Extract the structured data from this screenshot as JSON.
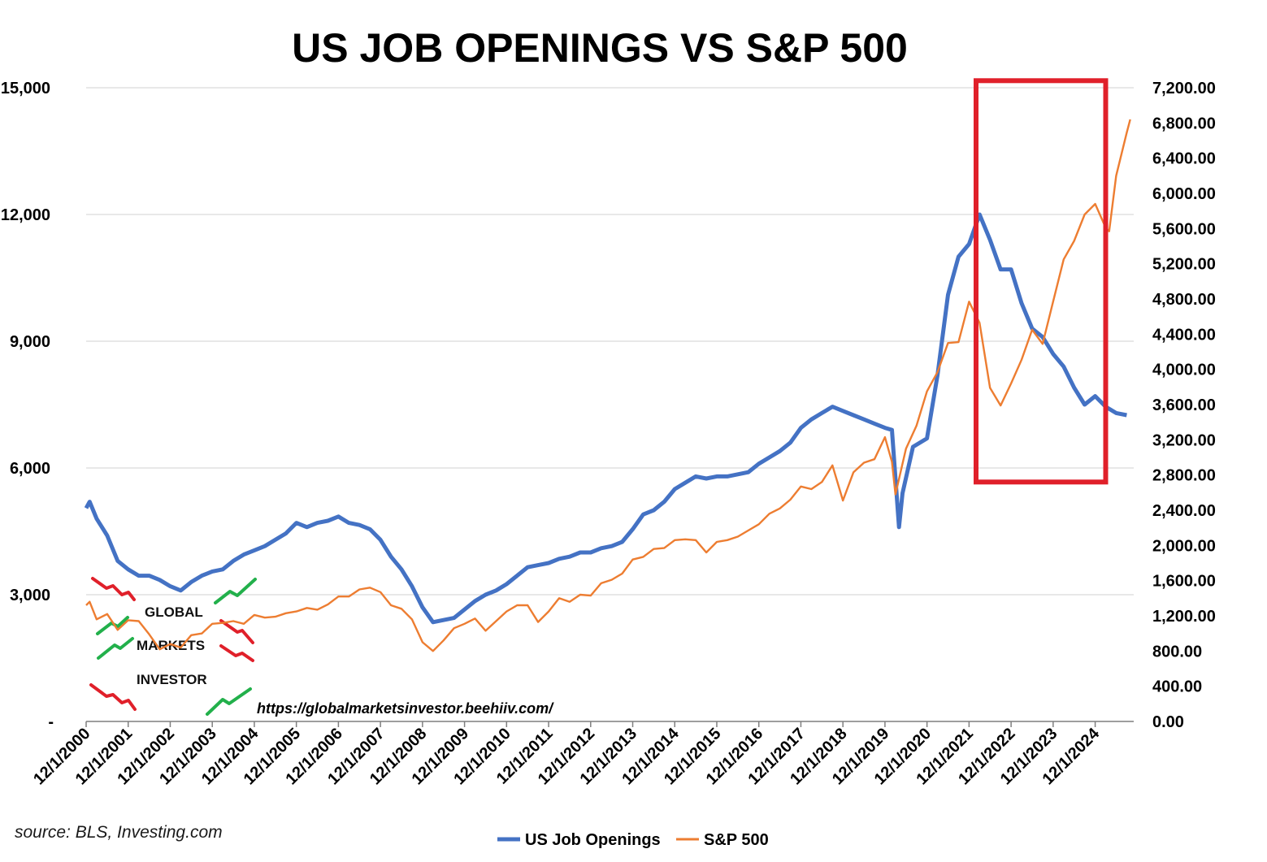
{
  "chart_data": {
    "type": "line",
    "title": "US JOB OPENINGS VS S&P 500",
    "source": "source: BLS, Investing.com",
    "watermark": [
      "GLOBAL",
      "MARKETS",
      "INVESTOR"
    ],
    "url": "https://globalmarketsinvestor.beehiiv.com/",
    "x_tick_labels": [
      "12/1/2000",
      "12/1/2001",
      "12/1/2002",
      "12/1/2003",
      "12/1/2004",
      "12/1/2005",
      "12/1/2006",
      "12/1/2007",
      "12/1/2008",
      "12/1/2009",
      "12/1/2010",
      "12/1/2011",
      "12/1/2012",
      "12/1/2013",
      "12/1/2014",
      "12/1/2015",
      "12/1/2016",
      "12/1/2017",
      "12/1/2018",
      "12/1/2019",
      "12/1/2020",
      "12/1/2021",
      "12/1/2022",
      "12/1/2023",
      "12/1/2024"
    ],
    "y_left": {
      "ylim": [
        0,
        15000
      ],
      "tick_labels": [
        "-",
        "3,000",
        "6,000",
        "9,000",
        "12,000",
        "15,000"
      ]
    },
    "y_right": {
      "ylim": [
        0,
        7200
      ],
      "tick_labels": [
        "0.00",
        "400.00",
        "800.00",
        "1,200.00",
        "1,600.00",
        "2,000.00",
        "2,400.00",
        "2,800.00",
        "3,200.00",
        "3,600.00",
        "4,000.00",
        "4,400.00",
        "4,800.00",
        "5,200.00",
        "5,600.00",
        "6,000.00",
        "6,400.00",
        "6,800.00",
        "7,200.00"
      ]
    },
    "grid": true,
    "legend_position": "bottom-center",
    "highlight_box": {
      "color": "#e0202a",
      "x_from": "2022-02",
      "x_to": "2025-03",
      "y_right_from": 2720,
      "y_right_to": 7280
    },
    "series": [
      {
        "name": "US Job Openings",
        "axis": "left",
        "color": "#4472c4",
        "points": [
          [
            "2000-12",
            5050
          ],
          [
            "2001-01",
            5200
          ],
          [
            "2001-03",
            4800
          ],
          [
            "2001-06",
            4400
          ],
          [
            "2001-09",
            3800
          ],
          [
            "2001-12",
            3600
          ],
          [
            "2002-03",
            3450
          ],
          [
            "2002-06",
            3450
          ],
          [
            "2002-09",
            3350
          ],
          [
            "2002-12",
            3200
          ],
          [
            "2003-03",
            3100
          ],
          [
            "2003-06",
            3300
          ],
          [
            "2003-09",
            3450
          ],
          [
            "2003-12",
            3550
          ],
          [
            "2004-03",
            3600
          ],
          [
            "2004-06",
            3800
          ],
          [
            "2004-09",
            3950
          ],
          [
            "2004-12",
            4050
          ],
          [
            "2005-03",
            4150
          ],
          [
            "2005-06",
            4300
          ],
          [
            "2005-09",
            4450
          ],
          [
            "2005-12",
            4700
          ],
          [
            "2006-03",
            4600
          ],
          [
            "2006-06",
            4700
          ],
          [
            "2006-09",
            4750
          ],
          [
            "2006-12",
            4850
          ],
          [
            "2007-03",
            4700
          ],
          [
            "2007-06",
            4650
          ],
          [
            "2007-09",
            4550
          ],
          [
            "2007-12",
            4300
          ],
          [
            "2008-03",
            3900
          ],
          [
            "2008-06",
            3600
          ],
          [
            "2008-09",
            3200
          ],
          [
            "2008-12",
            2700
          ],
          [
            "2009-03",
            2350
          ],
          [
            "2009-06",
            2400
          ],
          [
            "2009-09",
            2450
          ],
          [
            "2009-12",
            2650
          ],
          [
            "2010-03",
            2850
          ],
          [
            "2010-06",
            3000
          ],
          [
            "2010-09",
            3100
          ],
          [
            "2010-12",
            3250
          ],
          [
            "2011-03",
            3450
          ],
          [
            "2011-06",
            3650
          ],
          [
            "2011-09",
            3700
          ],
          [
            "2011-12",
            3750
          ],
          [
            "2012-03",
            3850
          ],
          [
            "2012-06",
            3900
          ],
          [
            "2012-09",
            4000
          ],
          [
            "2012-12",
            4000
          ],
          [
            "2013-03",
            4100
          ],
          [
            "2013-06",
            4150
          ],
          [
            "2013-09",
            4250
          ],
          [
            "2013-12",
            4550
          ],
          [
            "2014-03",
            4900
          ],
          [
            "2014-06",
            5000
          ],
          [
            "2014-09",
            5200
          ],
          [
            "2014-12",
            5500
          ],
          [
            "2015-03",
            5650
          ],
          [
            "2015-06",
            5800
          ],
          [
            "2015-09",
            5750
          ],
          [
            "2015-12",
            5800
          ],
          [
            "2016-03",
            5800
          ],
          [
            "2016-06",
            5850
          ],
          [
            "2016-09",
            5900
          ],
          [
            "2016-12",
            6100
          ],
          [
            "2017-03",
            6250
          ],
          [
            "2017-06",
            6400
          ],
          [
            "2017-09",
            6600
          ],
          [
            "2017-12",
            6950
          ],
          [
            "2018-03",
            7150
          ],
          [
            "2018-06",
            7300
          ],
          [
            "2018-09",
            7450
          ],
          [
            "2018-12",
            7350
          ],
          [
            "2019-03",
            7250
          ],
          [
            "2019-06",
            7150
          ],
          [
            "2019-09",
            7050
          ],
          [
            "2019-12",
            6950
          ],
          [
            "2020-02",
            6900
          ],
          [
            "2020-04",
            4600
          ],
          [
            "2020-05",
            5400
          ],
          [
            "2020-08",
            6500
          ],
          [
            "2020-12",
            6700
          ],
          [
            "2021-03",
            8200
          ],
          [
            "2021-06",
            10100
          ],
          [
            "2021-09",
            11000
          ],
          [
            "2021-12",
            11300
          ],
          [
            "2022-03",
            12000
          ],
          [
            "2022-06",
            11400
          ],
          [
            "2022-09",
            10700
          ],
          [
            "2022-12",
            10700
          ],
          [
            "2023-03",
            9900
          ],
          [
            "2023-06",
            9300
          ],
          [
            "2023-09",
            9100
          ],
          [
            "2023-12",
            8700
          ],
          [
            "2024-03",
            8400
          ],
          [
            "2024-06",
            7900
          ],
          [
            "2024-09",
            7500
          ],
          [
            "2024-12",
            7700
          ],
          [
            "2025-03",
            7450
          ],
          [
            "2025-06",
            7300
          ],
          [
            "2025-09",
            7250
          ]
        ]
      },
      {
        "name": "S&P 500",
        "axis": "right",
        "color": "#ed7d31",
        "points": [
          [
            "2000-12",
            1320
          ],
          [
            "2001-01",
            1360
          ],
          [
            "2001-03",
            1160
          ],
          [
            "2001-06",
            1220
          ],
          [
            "2001-09",
            1040
          ],
          [
            "2001-12",
            1150
          ],
          [
            "2002-03",
            1140
          ],
          [
            "2002-06",
            990
          ],
          [
            "2002-09",
            820
          ],
          [
            "2002-12",
            880
          ],
          [
            "2003-03",
            840
          ],
          [
            "2003-06",
            980
          ],
          [
            "2003-09",
            1000
          ],
          [
            "2003-12",
            1110
          ],
          [
            "2004-03",
            1120
          ],
          [
            "2004-06",
            1140
          ],
          [
            "2004-09",
            1110
          ],
          [
            "2004-12",
            1210
          ],
          [
            "2005-03",
            1180
          ],
          [
            "2005-06",
            1190
          ],
          [
            "2005-09",
            1230
          ],
          [
            "2005-12",
            1250
          ],
          [
            "2006-03",
            1290
          ],
          [
            "2006-06",
            1270
          ],
          [
            "2006-09",
            1330
          ],
          [
            "2006-12",
            1420
          ],
          [
            "2007-03",
            1420
          ],
          [
            "2007-06",
            1500
          ],
          [
            "2007-09",
            1520
          ],
          [
            "2007-12",
            1470
          ],
          [
            "2008-03",
            1320
          ],
          [
            "2008-06",
            1280
          ],
          [
            "2008-09",
            1160
          ],
          [
            "2008-12",
            900
          ],
          [
            "2009-03",
            800
          ],
          [
            "2009-06",
            920
          ],
          [
            "2009-09",
            1060
          ],
          [
            "2009-12",
            1110
          ],
          [
            "2010-03",
            1170
          ],
          [
            "2010-06",
            1030
          ],
          [
            "2010-09",
            1140
          ],
          [
            "2010-12",
            1250
          ],
          [
            "2011-03",
            1320
          ],
          [
            "2011-06",
            1320
          ],
          [
            "2011-09",
            1130
          ],
          [
            "2011-12",
            1250
          ],
          [
            "2012-03",
            1400
          ],
          [
            "2012-06",
            1360
          ],
          [
            "2012-09",
            1440
          ],
          [
            "2012-12",
            1430
          ],
          [
            "2013-03",
            1570
          ],
          [
            "2013-06",
            1610
          ],
          [
            "2013-09",
            1680
          ],
          [
            "2013-12",
            1840
          ],
          [
            "2014-03",
            1870
          ],
          [
            "2014-06",
            1960
          ],
          [
            "2014-09",
            1970
          ],
          [
            "2014-12",
            2060
          ],
          [
            "2015-03",
            2070
          ],
          [
            "2015-06",
            2060
          ],
          [
            "2015-09",
            1920
          ],
          [
            "2015-12",
            2040
          ],
          [
            "2016-03",
            2060
          ],
          [
            "2016-06",
            2100
          ],
          [
            "2016-09",
            2170
          ],
          [
            "2016-12",
            2240
          ],
          [
            "2017-03",
            2360
          ],
          [
            "2017-06",
            2420
          ],
          [
            "2017-09",
            2520
          ],
          [
            "2017-12",
            2670
          ],
          [
            "2018-03",
            2640
          ],
          [
            "2018-06",
            2720
          ],
          [
            "2018-09",
            2910
          ],
          [
            "2018-12",
            2510
          ],
          [
            "2019-03",
            2830
          ],
          [
            "2019-06",
            2940
          ],
          [
            "2019-09",
            2980
          ],
          [
            "2019-12",
            3230
          ],
          [
            "2020-02",
            2950
          ],
          [
            "2020-03",
            2580
          ],
          [
            "2020-06",
            3100
          ],
          [
            "2020-09",
            3360
          ],
          [
            "2020-12",
            3750
          ],
          [
            "2021-03",
            3970
          ],
          [
            "2021-06",
            4300
          ],
          [
            "2021-09",
            4310
          ],
          [
            "2021-12",
            4770
          ],
          [
            "2022-03",
            4530
          ],
          [
            "2022-06",
            3790
          ],
          [
            "2022-09",
            3590
          ],
          [
            "2022-12",
            3840
          ],
          [
            "2023-03",
            4110
          ],
          [
            "2023-06",
            4450
          ],
          [
            "2023-09",
            4290
          ],
          [
            "2023-12",
            4770
          ],
          [
            "2024-03",
            5250
          ],
          [
            "2024-06",
            5460
          ],
          [
            "2024-09",
            5760
          ],
          [
            "2024-12",
            5880
          ],
          [
            "2025-03",
            5610
          ],
          [
            "2025-04",
            5570
          ],
          [
            "2025-06",
            6200
          ],
          [
            "2025-09",
            6690
          ],
          [
            "2025-10",
            6840
          ]
        ]
      }
    ]
  }
}
